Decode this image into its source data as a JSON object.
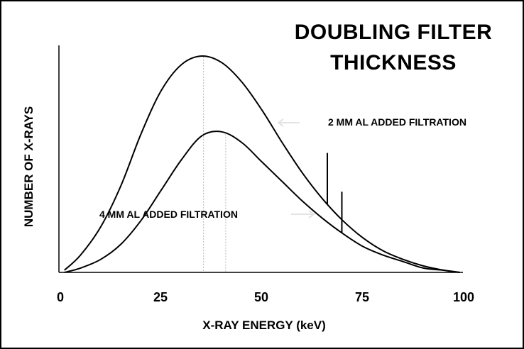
{
  "chart_data": {
    "type": "line",
    "title_lines": [
      "DOUBLING FILTER",
      "THICKNESS"
    ],
    "xlabel": "X-RAY ENERGY (keV)",
    "ylabel": "NUMBER OF X-RAYS",
    "xlim": [
      0,
      100
    ],
    "ylim": [
      0,
      100
    ],
    "x_ticks": [
      "0",
      "25",
      "50",
      "75",
      "100"
    ],
    "grid": false,
    "series": [
      {
        "name": "2 MM AL ADDED FILTRATION",
        "x": [
          1,
          5,
          10,
          15,
          20,
          25,
          30,
          35,
          40,
          45,
          50,
          55,
          60,
          65,
          70,
          75,
          80,
          85,
          90,
          95,
          99
        ],
        "y": [
          1,
          8,
          21,
          40,
          64,
          84,
          96,
          100,
          97,
          88,
          75,
          60,
          46,
          34,
          24,
          16,
          10,
          6,
          3,
          1,
          0
        ],
        "peak_x": 35.5
      },
      {
        "name": "4 MM AL ADDED FILTRATION",
        "x": [
          1,
          5,
          10,
          15,
          20,
          25,
          30,
          35,
          40,
          45,
          50,
          55,
          60,
          65,
          70,
          75,
          80,
          85,
          90,
          95,
          99
        ],
        "y": [
          0,
          2,
          6,
          13,
          24,
          38,
          52,
          63,
          65,
          60,
          51,
          42,
          33,
          25,
          18,
          12,
          8,
          5,
          2,
          1,
          0
        ],
        "peak_x": 41
      }
    ],
    "annotations": [
      {
        "text": "2 MM AL ADDED FILTRATION",
        "marker_x": 66.2
      },
      {
        "text": "4 MM AL ADDED FILTRATION",
        "marker_x": 69.8
      }
    ]
  }
}
